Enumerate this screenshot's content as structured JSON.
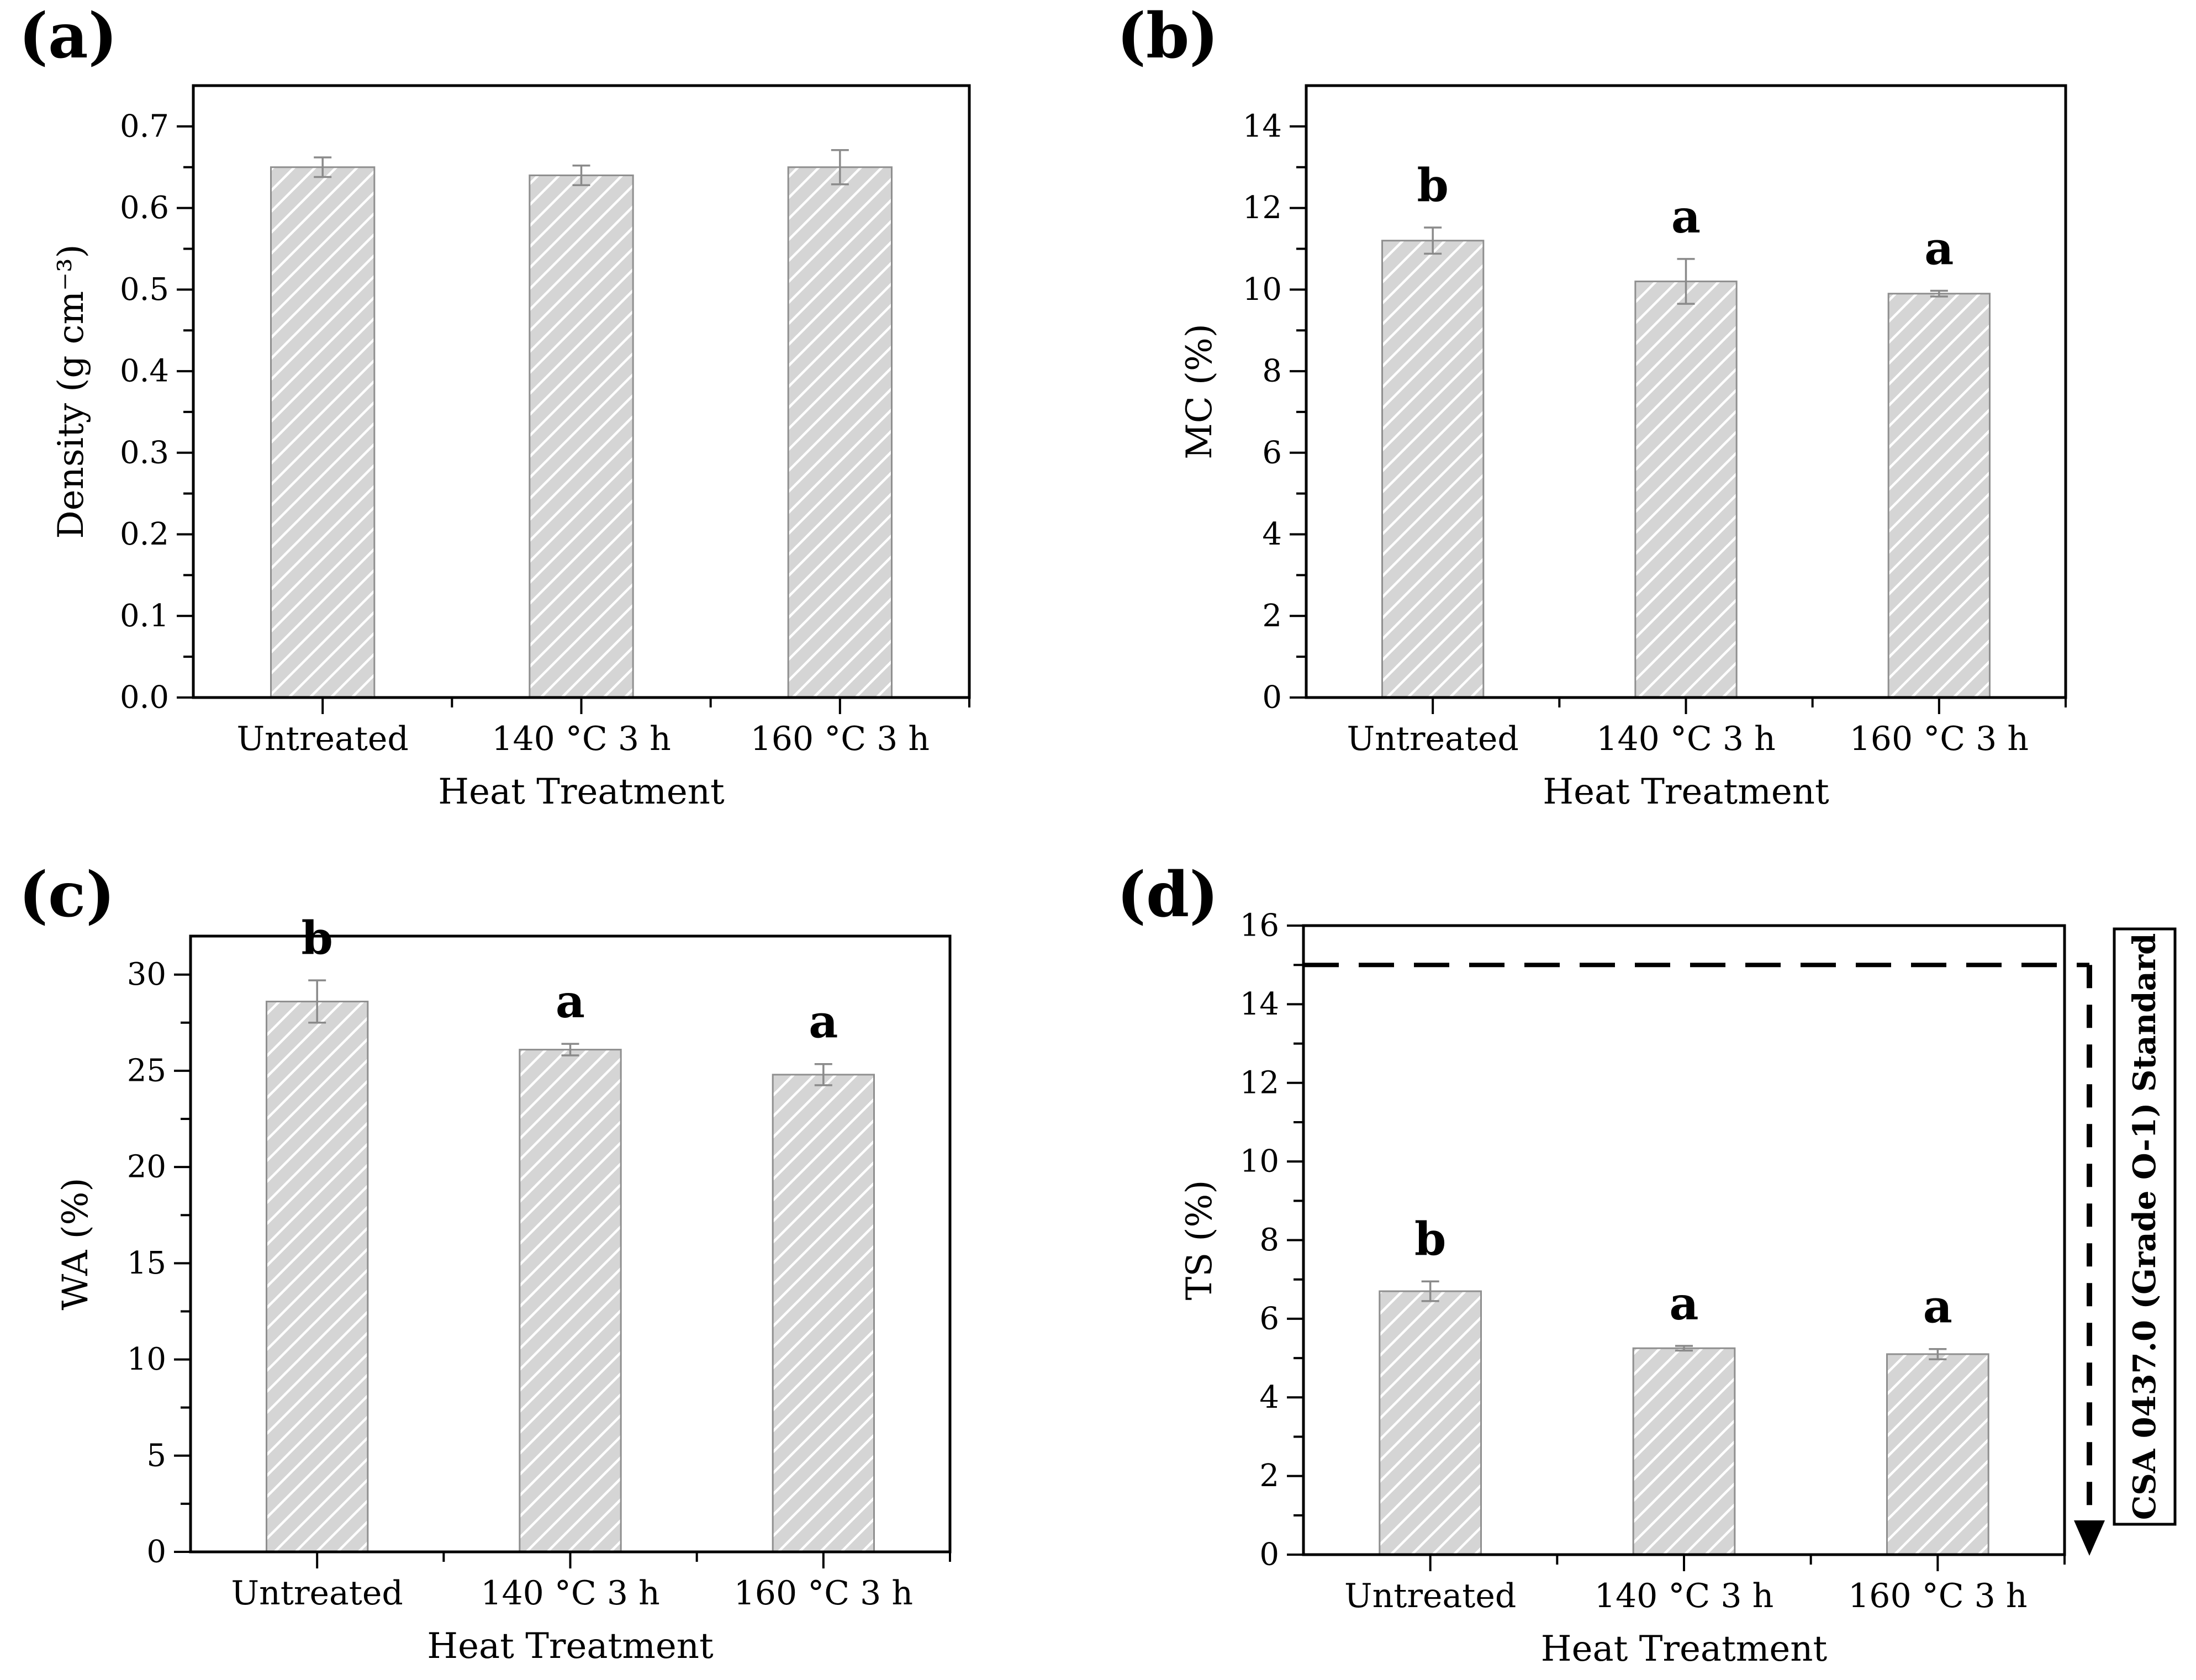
{
  "figure": {
    "type": "four-panel-bar-figure",
    "x_axis_title": "Heat Treatment",
    "categories": [
      "Untreated",
      "140 °C 3 h",
      "160 °C 3 h"
    ]
  },
  "colors": {
    "bar_fill": "#d5d5d5",
    "bar_hatch": "#ffffff",
    "bar_stroke": "#8f8f8f",
    "error_bar": "#8a8a8a",
    "axis": "#000000",
    "text": "#000000",
    "reference_line": "#000000",
    "annotation_box_fill": "#ffffff",
    "annotation_box_stroke": "#000000"
  },
  "chart_data": [
    {
      "panel": "a",
      "panel_label": "(a)",
      "type": "bar",
      "xlabel": "Heat Treatment",
      "ylabel": "Density (g cm⁻³)",
      "categories": [
        "Untreated",
        "140 °C 3 h",
        "160 °C 3 h"
      ],
      "values": [
        0.65,
        0.64,
        0.65
      ],
      "errors": [
        0.012,
        0.012,
        0.021
      ],
      "sig_letters": [
        "",
        "",
        ""
      ],
      "ylim": [
        0,
        0.75
      ],
      "ytick_step": 0.1,
      "ytick_max": 0.7,
      "ytick_decimals": 1,
      "minor_per_major": 2,
      "grid": false,
      "legend": "none"
    },
    {
      "panel": "b",
      "panel_label": "(b)",
      "type": "bar",
      "xlabel": "Heat Treatment",
      "ylabel": "MC (%)",
      "categories": [
        "Untreated",
        "140 °C 3 h",
        "160 °C 3 h"
      ],
      "values": [
        11.2,
        10.2,
        9.9
      ],
      "errors": [
        0.32,
        0.55,
        0.07
      ],
      "sig_letters": [
        "b",
        "a",
        "a"
      ],
      "ylim": [
        0,
        15
      ],
      "ytick_step": 2,
      "ytick_max": 14,
      "ytick_decimals": 0,
      "minor_per_major": 2,
      "grid": false,
      "legend": "none"
    },
    {
      "panel": "c",
      "panel_label": "(c)",
      "type": "bar",
      "xlabel": "Heat Treatment",
      "ylabel": "WA (%)",
      "categories": [
        "Untreated",
        "140 °C 3 h",
        "160 °C 3 h"
      ],
      "values": [
        28.6,
        26.1,
        24.8
      ],
      "errors": [
        1.1,
        0.3,
        0.55
      ],
      "sig_letters": [
        "b",
        "a",
        "a"
      ],
      "ylim": [
        0,
        32
      ],
      "ytick_step": 5,
      "ytick_max": 30,
      "ytick_decimals": 0,
      "minor_per_major": 2,
      "grid": false,
      "legend": "none"
    },
    {
      "panel": "d",
      "panel_label": "(d)",
      "type": "bar",
      "xlabel": "Heat Treatment",
      "ylabel": "TS (%)",
      "categories": [
        "Untreated",
        "140 °C 3 h",
        "160 °C 3 h"
      ],
      "values": [
        6.7,
        5.25,
        5.1
      ],
      "errors": [
        0.25,
        0.06,
        0.13
      ],
      "sig_letters": [
        "b",
        "a",
        "a"
      ],
      "ylim": [
        0,
        16
      ],
      "ytick_step": 2,
      "ytick_max": 16,
      "ytick_decimals": 0,
      "minor_per_major": 2,
      "grid": false,
      "legend": "none",
      "reference_line": {
        "value": 15,
        "style": "dashed",
        "arrow": "down",
        "label": "CSA 0437.0 (Grade O-1) Standard"
      }
    }
  ]
}
